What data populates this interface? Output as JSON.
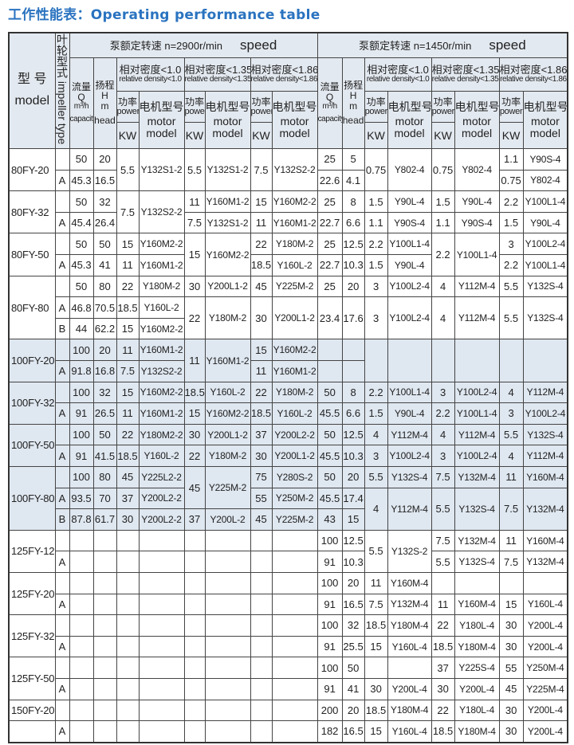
{
  "title": "工作性能表：Operating performance table",
  "header": {
    "model_cn": "型 号",
    "model_en": "model",
    "impeller": "叶轮型式 impeller type",
    "speed_left_cn": "泵额定转速 n=2900r/min",
    "speed_right_cn": "泵额定转速 n=1450r/min",
    "speed_en": "speed",
    "capacity_cn": "流量",
    "capacity_sym": "Q",
    "capacity_unit": "m³/h",
    "capacity_en": "capacity",
    "head_cn": "扬程",
    "head_sym": "H",
    "head_unit": "m",
    "head_en": "head",
    "densities": [
      {
        "cn": "相对密度<1.0",
        "en": "relative density<1.0"
      },
      {
        "cn": "相对密度<1.35",
        "en": "relative density<1.35"
      },
      {
        "cn": "相对密度<1.86",
        "en": "relative density<1.86"
      }
    ],
    "power_cn": "功率",
    "power_en": "power",
    "power_unit": "KW",
    "motor_cn": "电机型号",
    "motor_en1": "motor",
    "motor_en2": "model"
  },
  "groups": [
    {
      "shaded": false,
      "rows": [
        [
          {
            "t": "80FY-20",
            "rs": 2
          },
          "",
          "50",
          "20",
          {
            "t": "5.5",
            "rs": 2
          },
          {
            "t": "Y132S1-2",
            "rs": 2
          },
          {
            "t": "5.5",
            "rs": 2
          },
          {
            "t": "Y132S1-2",
            "rs": 2
          },
          {
            "t": "7.5",
            "rs": 2
          },
          {
            "t": "Y132S2-2",
            "rs": 2
          },
          "25",
          "5",
          {
            "t": "0.75",
            "rs": 2
          },
          {
            "t": "Y802-4",
            "rs": 2
          },
          {
            "t": "0.75",
            "rs": 2
          },
          {
            "t": "Y802-4",
            "rs": 2
          },
          "1.1",
          "Y90S-4"
        ],
        [
          "A",
          "45.3",
          "16.5",
          "22.6",
          "4.1",
          "0.75",
          "Y802-4"
        ]
      ]
    },
    {
      "shaded": false,
      "rows": [
        [
          {
            "t": "80FY-32",
            "rs": 2
          },
          "",
          "50",
          "32",
          {
            "t": "7.5",
            "rs": 2
          },
          {
            "t": "Y132S2-2",
            "rs": 2
          },
          "11",
          "Y160M1-2",
          "15",
          "Y160M2-2",
          "25",
          "8",
          "1.5",
          "Y90L-4",
          "1.5",
          "Y90L-4",
          "2.2",
          "Y100L1-4"
        ],
        [
          "A",
          "45.4",
          "26.4",
          "7.5",
          "Y132S1-2",
          "11",
          "Y160M1-2",
          "22.7",
          "6.6",
          "1.1",
          "Y90S-4",
          "1.1",
          "Y90S-4",
          "1.5",
          "Y90L-4"
        ]
      ]
    },
    {
      "shaded": false,
      "rows": [
        [
          {
            "t": "80FY-50",
            "rs": 2
          },
          "",
          "50",
          "50",
          "15",
          "Y160M2-2",
          {
            "t": "15",
            "rs": 2
          },
          {
            "t": "Y160M2-2",
            "rs": 2
          },
          "22",
          "Y180M-2",
          "25",
          "12.5",
          "2.2",
          "Y100L1-4",
          {
            "t": "2.2",
            "rs": 2
          },
          {
            "t": "Y100L1-4",
            "rs": 2
          },
          "3",
          "Y100L2-4"
        ],
        [
          "A",
          "45.3",
          "41",
          "11",
          "Y160M1-2",
          "18.5",
          "Y160L-2",
          "22.7",
          "10.3",
          "1.5",
          "Y90L-4",
          "2.2",
          "Y100L1-4"
        ]
      ]
    },
    {
      "shaded": false,
      "rows": [
        [
          {
            "t": "80FY-80",
            "rs": 3
          },
          "",
          "50",
          "80",
          "22",
          "Y180M-2",
          "30",
          "Y200L1-2",
          "45",
          "Y225M-2",
          "25",
          "20",
          "3",
          "Y100L2-4",
          "4",
          "Y112M-4",
          "5.5",
          "Y132S-4"
        ],
        [
          "A",
          "46.8",
          "70.5",
          "18.5",
          "Y160L-2",
          {
            "t": "22",
            "rs": 2
          },
          {
            "t": "Y180M-2",
            "rs": 2
          },
          {
            "t": "30",
            "rs": 2
          },
          {
            "t": "Y200L1-2",
            "rs": 2
          },
          {
            "t": "23.4",
            "rs": 2
          },
          {
            "t": "17.6",
            "rs": 2
          },
          {
            "t": "3",
            "rs": 2
          },
          {
            "t": "Y100L2-4",
            "rs": 2
          },
          {
            "t": "4",
            "rs": 2
          },
          {
            "t": "Y112M-4",
            "rs": 2
          },
          {
            "t": "5.5",
            "rs": 2
          },
          {
            "t": "Y132S-4",
            "rs": 2
          }
        ],
        [
          "B",
          "44",
          "62.2",
          "15",
          "Y160M2-2"
        ]
      ]
    },
    {
      "shaded": true,
      "rows": [
        [
          {
            "t": "100FY-20",
            "rs": 2
          },
          "",
          "100",
          "20",
          "11",
          "Y160M1-2",
          {
            "t": "11",
            "rs": 2
          },
          {
            "t": "Y160M1-2",
            "rs": 2
          },
          "15",
          "Y160M2-2",
          "",
          "",
          {
            "t": "",
            "rs": 2
          },
          {
            "t": "",
            "rs": 2
          },
          {
            "t": "",
            "rs": 2
          },
          {
            "t": "",
            "rs": 2
          },
          {
            "t": "",
            "rs": 2
          },
          {
            "t": "",
            "rs": 2
          }
        ],
        [
          "A",
          "91.8",
          "16.8",
          "7.5",
          "Y132S2-2",
          "11",
          "Y160M1-2",
          "",
          ""
        ]
      ]
    },
    {
      "shaded": true,
      "rows": [
        [
          {
            "t": "100FY-32",
            "rs": 2
          },
          "",
          "100",
          "32",
          "15",
          "Y160M2-2",
          "18.5",
          "Y160L-2",
          "22",
          "Y180M-2",
          "50",
          "8",
          "2.2",
          "Y100L1-4",
          "3",
          "Y100L2-4",
          "4",
          "Y112M-4"
        ],
        [
          "A",
          "91",
          "26.5",
          "11",
          "Y160M1-2",
          "15",
          "Y160M2-2",
          "18.5",
          "Y160L-2",
          "45.5",
          "6.6",
          "1.5",
          "Y90L-4",
          "2.2",
          "Y100L1-4",
          "3",
          "Y100L2-4"
        ]
      ]
    },
    {
      "shaded": true,
      "rows": [
        [
          {
            "t": "100FY-50",
            "rs": 2
          },
          "",
          "100",
          "50",
          "22",
          "Y180M2-2",
          "30",
          "Y200L1-2",
          "37",
          "Y200L2-2",
          "50",
          "12.5",
          "4",
          "Y112M-4",
          "4",
          "Y112M-4",
          "5.5",
          "Y132S-4"
        ],
        [
          "A",
          "91",
          "41.5",
          "18.5",
          "Y160L-2",
          "22",
          "Y180M-2",
          "30",
          "Y200L1-2",
          "45.5",
          "10.3",
          "3",
          "Y100L2-4",
          "3",
          "Y100L2-4",
          "4",
          "Y112M-4"
        ]
      ]
    },
    {
      "shaded": true,
      "rows": [
        [
          {
            "t": "100FY-80",
            "rs": 3
          },
          "",
          "100",
          "80",
          "45",
          "Y225L2-2",
          {
            "t": "45",
            "rs": 2
          },
          {
            "t": "Y225M-2",
            "rs": 2
          },
          "75",
          "Y280S-2",
          "50",
          "20",
          "5.5",
          "Y132S-4",
          "7.5",
          "Y132M-4",
          "11",
          "Y160M-4"
        ],
        [
          "A",
          "93.5",
          "70",
          "37",
          "Y200L2-2",
          "55",
          "Y250M-2",
          "45.5",
          "17.4",
          {
            "t": "4",
            "rs": 2
          },
          {
            "t": "Y112M-4",
            "rs": 2
          },
          {
            "t": "5.5",
            "rs": 2
          },
          {
            "t": "Y132S-4",
            "rs": 2
          },
          {
            "t": "7.5",
            "rs": 2
          },
          {
            "t": "Y132M-4",
            "rs": 2
          }
        ],
        [
          "B",
          "87.8",
          "61.7",
          "30",
          "Y200L2-2",
          "37",
          "Y200L-2",
          "45",
          "Y225M-2",
          "43",
          "15"
        ]
      ]
    },
    {
      "shaded": false,
      "rows": [
        [
          {
            "t": "125FY-12.5",
            "rs": 2
          },
          "",
          "",
          "",
          "",
          "",
          "",
          "",
          "",
          "",
          "100",
          "12.5",
          {
            "t": "5.5",
            "rs": 2
          },
          {
            "t": "Y132S-2",
            "rs": 2
          },
          "7.5",
          "Y132M-4",
          "11",
          "Y160M-4"
        ],
        [
          "A",
          "",
          "",
          "",
          "",
          "",
          "",
          "",
          "",
          "91",
          "10.3",
          "5.5",
          "Y132S-4",
          "7.5",
          "Y132M-4"
        ]
      ]
    },
    {
      "shaded": false,
      "rows": [
        [
          {
            "t": "125FY-20",
            "rs": 2
          },
          "",
          "",
          "",
          "",
          "",
          "",
          "",
          "",
          "",
          "100",
          "20",
          "11",
          "Y160M-4",
          "",
          "",
          "",
          ""
        ],
        [
          "A",
          "",
          "",
          "",
          "",
          "",
          "",
          "",
          "",
          "91",
          "16.5",
          "7.5",
          "Y132M-4",
          "11",
          "Y160M-4",
          "15",
          "Y160L-4"
        ]
      ]
    },
    {
      "shaded": false,
      "rows": [
        [
          {
            "t": "125FY-32",
            "rs": 2
          },
          "",
          "",
          "",
          "",
          "",
          "",
          "",
          "",
          "",
          "100",
          "32",
          "18.5",
          "Y180M-4",
          "22",
          "Y180L-4",
          "30",
          "Y200L-4"
        ],
        [
          "A",
          "",
          "",
          "",
          "",
          "",
          "",
          "",
          "",
          "91",
          "25.5",
          "15",
          "Y160L-4",
          "18.5",
          "Y180M-4",
          "30",
          "Y200L-4"
        ]
      ]
    },
    {
      "shaded": false,
      "rows": [
        [
          {
            "t": "125FY-50",
            "rs": 2
          },
          "",
          "",
          "",
          "",
          "",
          "",
          "",
          "",
          "",
          "100",
          "50",
          "",
          "",
          "37",
          "Y225S-4",
          "55",
          "Y250M-4"
        ],
        [
          "A",
          "",
          "",
          "",
          "",
          "",
          "",
          "",
          "",
          "91",
          "41",
          "30",
          "Y200L-4",
          "30",
          "Y200L-4",
          "45",
          "Y225M-4"
        ]
      ]
    },
    {
      "shaded": false,
      "rows": [
        [
          "150FY-20",
          "",
          "",
          "",
          "",
          "",
          "",
          "",
          "",
          "",
          "200",
          "20",
          "18.5",
          "Y180M-4",
          "22",
          "Y180L-4",
          "30",
          "Y200L-4"
        ],
        [
          "",
          "A",
          "",
          "",
          "",
          "",
          "",
          "",
          "",
          "",
          "182",
          "16.5",
          "15",
          "Y160L-4",
          "18.5",
          "Y180M-4",
          "30",
          "Y200L-4"
        ]
      ]
    }
  ]
}
